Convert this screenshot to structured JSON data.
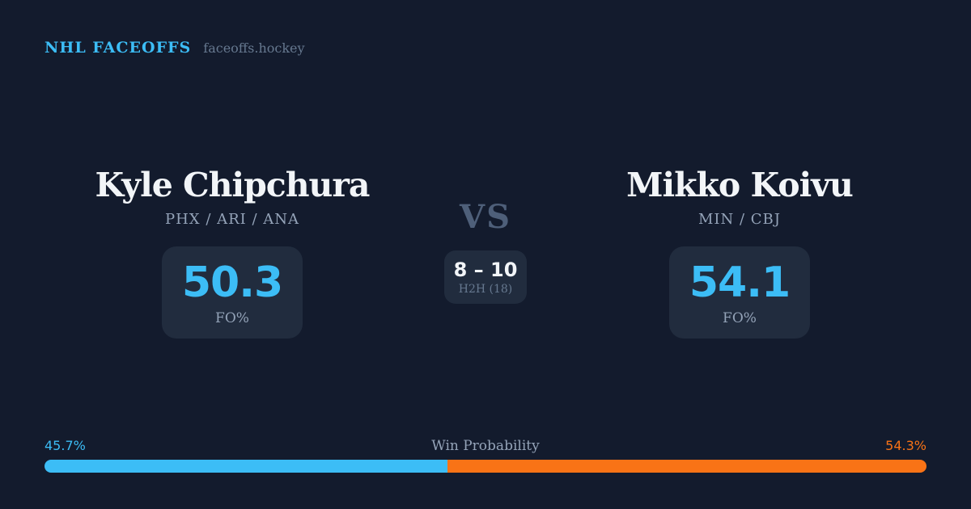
{
  "brand": {
    "title": "NHL FACEOFFS",
    "domain": "faceoffs.hockey"
  },
  "matchup": {
    "vs_label": "VS",
    "h2h": {
      "score": "8 – 10",
      "label": "H2H (18)"
    },
    "players": [
      {
        "name": "Kyle Chipchura",
        "teams": "PHX / ARI / ANA",
        "fo_pct": "50.3",
        "stat_label": "FO%"
      },
      {
        "name": "Mikko Koivu",
        "teams": "MIN / CBJ",
        "fo_pct": "54.1",
        "stat_label": "FO%"
      }
    ]
  },
  "win_probability": {
    "title": "Win Probability",
    "left": {
      "value": 45.7,
      "label": "45.7%"
    },
    "right": {
      "value": 54.3,
      "label": "54.3%"
    }
  },
  "colors": {
    "background": "#131b2d",
    "panel": "#212c3e",
    "accent_blue": "#3cbdf6",
    "accent_orange": "#f97316",
    "text_primary": "#f2f5f8",
    "text_muted": "#94a3b8",
    "text_dim": "#66788f",
    "vs": "#4e5f79"
  }
}
